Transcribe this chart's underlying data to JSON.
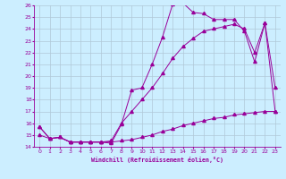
{
  "xlabel": "Windchill (Refroidissement éolien,°C)",
  "bg_color": "#cceeff",
  "line_color": "#990099",
  "grid_color": "#b0c8d8",
  "xlim": [
    -0.5,
    23.5
  ],
  "ylim": [
    14,
    26
  ],
  "yticks": [
    14,
    15,
    16,
    17,
    18,
    19,
    20,
    21,
    22,
    23,
    24,
    25,
    26
  ],
  "xticks": [
    0,
    1,
    2,
    3,
    4,
    5,
    6,
    7,
    8,
    9,
    10,
    11,
    12,
    13,
    14,
    15,
    16,
    17,
    18,
    19,
    20,
    21,
    22,
    23
  ],
  "line1_x": [
    0,
    1,
    2,
    3,
    4,
    5,
    6,
    7,
    8,
    9,
    10,
    11,
    12,
    13,
    14,
    15,
    16,
    17,
    18,
    19,
    20,
    21,
    22,
    23
  ],
  "line1_y": [
    15.7,
    14.7,
    14.8,
    14.4,
    14.4,
    14.4,
    14.4,
    14.3,
    15.9,
    18.8,
    19.0,
    21.0,
    23.3,
    26.1,
    26.2,
    25.4,
    25.3,
    24.8,
    24.8,
    24.8,
    23.8,
    21.2,
    24.5,
    19.0
  ],
  "line2_x": [
    0,
    1,
    2,
    3,
    4,
    5,
    6,
    7,
    8,
    9,
    10,
    11,
    12,
    13,
    14,
    15,
    16,
    17,
    18,
    19,
    20,
    21,
    22,
    23
  ],
  "line2_y": [
    15.7,
    14.7,
    14.8,
    14.4,
    14.4,
    14.4,
    14.4,
    14.5,
    16.0,
    17.0,
    18.0,
    19.0,
    20.2,
    21.5,
    22.5,
    23.2,
    23.8,
    24.0,
    24.2,
    24.4,
    24.0,
    22.0,
    24.5,
    17.0
  ],
  "line3_x": [
    0,
    1,
    2,
    3,
    4,
    5,
    6,
    7,
    8,
    9,
    10,
    11,
    12,
    13,
    14,
    15,
    16,
    17,
    18,
    19,
    20,
    21,
    22,
    23
  ],
  "line3_y": [
    15.0,
    14.7,
    14.8,
    14.4,
    14.4,
    14.4,
    14.4,
    14.4,
    14.5,
    14.6,
    14.8,
    15.0,
    15.3,
    15.5,
    15.8,
    16.0,
    16.2,
    16.4,
    16.5,
    16.7,
    16.8,
    16.9,
    17.0,
    17.0
  ]
}
